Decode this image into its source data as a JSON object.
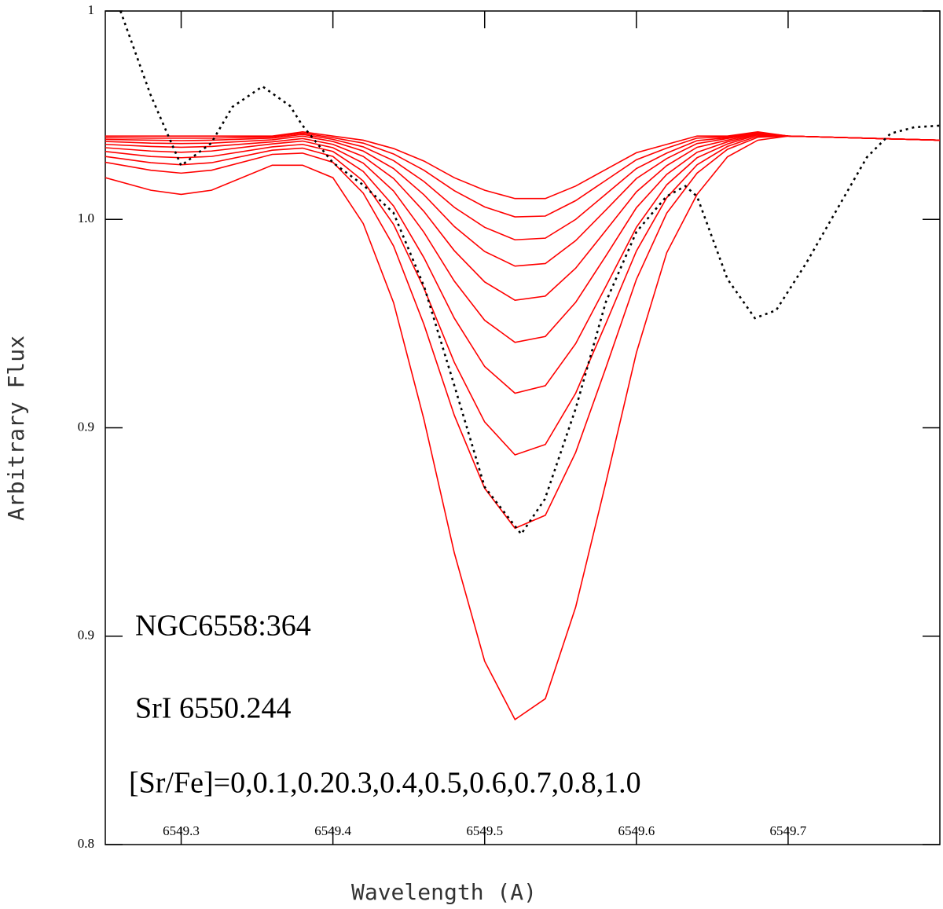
{
  "chart_data": {
    "type": "line",
    "xlabel": "Wavelength (A)",
    "ylabel": "Arbitrary Flux",
    "annotations": [
      "NGC6558:364",
      "SrI 6550.244",
      "[Sr/Fe]=0,0.1,0.20.3,0.4,0.5,0.6,0.7,0.8,1.0"
    ],
    "xlim": [
      6549.25,
      6549.8
    ],
    "ylim": [
      0.8,
      1.0
    ],
    "xticks": [
      6549.3,
      6549.4,
      6549.5,
      6549.6,
      6549.7
    ],
    "yticks": [
      0.8,
      {
        "value": 0.85,
        "label": "0.9"
      },
      0.9,
      {
        "value": 0.95,
        "label": "1.0"
      },
      1.0
    ],
    "x": [
      6549.25,
      6549.28,
      6549.3,
      6549.32,
      6549.36,
      6549.38,
      6549.4,
      6549.42,
      6549.44,
      6549.46,
      6549.48,
      6549.5,
      6549.52,
      6549.54,
      6549.56,
      6549.58,
      6549.6,
      6549.62,
      6549.64,
      6549.66,
      6549.68,
      6549.7,
      6549.8
    ],
    "series": [
      {
        "color": "#ff0000",
        "values": [
          0.97,
          0.97,
          0.97,
          0.97,
          0.97,
          0.971,
          0.97,
          0.969,
          0.967,
          0.964,
          0.96,
          0.957,
          0.955,
          0.955,
          0.958,
          0.962,
          0.966,
          0.968,
          0.97,
          0.97,
          0.971,
          0.97,
          0.969
        ]
      },
      {
        "color": "#ff0000",
        "values": [
          0.9696,
          0.9695,
          0.9695,
          0.9695,
          0.9698,
          0.9707,
          0.9696,
          0.9683,
          0.9657,
          0.9618,
          0.9569,
          0.953,
          0.9506,
          0.9508,
          0.9545,
          0.9594,
          0.9643,
          0.9671,
          0.9695,
          0.9698,
          0.9709,
          0.97,
          0.969
        ]
      },
      {
        "color": "#ff0000",
        "values": [
          0.9692,
          0.969,
          0.9689,
          0.969,
          0.9695,
          0.9704,
          0.9692,
          0.9674,
          0.9641,
          0.9591,
          0.9529,
          0.9481,
          0.9451,
          0.9455,
          0.95,
          0.9561,
          0.9622,
          0.9659,
          0.9689,
          0.9696,
          0.9708,
          0.97,
          0.969
        ]
      },
      {
        "color": "#ff0000",
        "values": [
          0.9687,
          0.9683,
          0.9682,
          0.9683,
          0.9691,
          0.97,
          0.9687,
          0.9664,
          0.9622,
          0.9559,
          0.9483,
          0.9423,
          0.9388,
          0.9394,
          0.9449,
          0.9523,
          0.9598,
          0.9646,
          0.9682,
          0.9694,
          0.9707,
          0.97,
          0.969
        ]
      },
      {
        "color": "#ff0000",
        "values": [
          0.968,
          0.9675,
          0.9673,
          0.9675,
          0.9686,
          0.9694,
          0.968,
          0.9651,
          0.9598,
          0.9519,
          0.9425,
          0.935,
          0.9306,
          0.9316,
          0.9383,
          0.9474,
          0.9566,
          0.9629,
          0.9673,
          0.969,
          0.9706,
          0.97,
          0.969
        ]
      },
      {
        "color": "#ff0000",
        "values": [
          0.9672,
          0.9664,
          0.9661,
          0.9664,
          0.9681,
          0.9688,
          0.9672,
          0.9635,
          0.9568,
          0.9469,
          0.9352,
          0.9258,
          0.9205,
          0.9219,
          0.9301,
          0.9413,
          0.9528,
          0.9608,
          0.9661,
          0.9686,
          0.9704,
          0.97,
          0.969
        ]
      },
      {
        "color": "#ff0000",
        "values": [
          0.9663,
          0.9651,
          0.9648,
          0.9651,
          0.9674,
          0.968,
          0.9663,
          0.9615,
          0.9532,
          0.9408,
          0.9263,
          0.9147,
          0.9083,
          0.9101,
          0.9202,
          0.934,
          0.9481,
          0.9583,
          0.9648,
          0.9681,
          0.9703,
          0.97,
          0.969
        ]
      },
      {
        "color": "#ff0000",
        "values": [
          0.9651,
          0.9636,
          0.9631,
          0.9636,
          0.9666,
          0.9671,
          0.9651,
          0.9592,
          0.9488,
          0.9335,
          0.9157,
          0.9014,
          0.8935,
          0.896,
          0.9083,
          0.9251,
          0.9424,
          0.9552,
          0.9631,
          0.9675,
          0.97,
          0.97,
          0.969
        ]
      },
      {
        "color": "#ff0000",
        "values": [
          0.9637,
          0.9618,
          0.9611,
          0.9618,
          0.9656,
          0.9659,
          0.9637,
          0.9563,
          0.9436,
          0.9248,
          0.903,
          0.8855,
          0.8759,
          0.879,
          0.8941,
          0.9145,
          0.9356,
          0.9515,
          0.9611,
          0.9668,
          0.9697,
          0.97,
          0.969
        ]
      },
      {
        "color": "#ff0000",
        "values": [
          0.96,
          0.957,
          0.956,
          0.957,
          0.963,
          0.963,
          0.96,
          0.949,
          0.93,
          0.902,
          0.87,
          0.844,
          0.83,
          0.835,
          0.857,
          0.887,
          0.918,
          0.942,
          0.956,
          0.965,
          0.969,
          0.97,
          0.969
        ]
      },
      {
        "color": "#000000",
        "dash": true,
        "x": [
          6549.26,
          6549.2797,
          6549.3,
          6549.3198,
          6549.3338,
          6549.3536,
          6549.3718,
          6549.3796,
          6549.4,
          6549.4198,
          6549.4399,
          6549.4602,
          6549.4799,
          6549.5,
          6549.5241,
          6549.5397,
          6549.56,
          6549.5798,
          6549.6,
          6549.6198,
          6549.6323,
          6549.64,
          6549.66,
          6549.6781,
          6549.6921,
          6549.7119,
          6549.7519,
          6549.7675,
          6549.7831,
          6549.8
        ],
        "values": [
          1.0,
          0.98,
          0.9629,
          0.9683,
          0.977,
          0.9819,
          0.9772,
          0.9727,
          0.9636,
          0.9583,
          0.9516,
          0.9338,
          0.9103,
          0.8858,
          0.8745,
          0.8829,
          0.9046,
          0.9301,
          0.947,
          0.9555,
          0.958,
          0.9555,
          0.9357,
          0.9263,
          0.9282,
          0.9395,
          0.9649,
          0.9706,
          0.9721,
          0.9725
        ]
      }
    ]
  }
}
